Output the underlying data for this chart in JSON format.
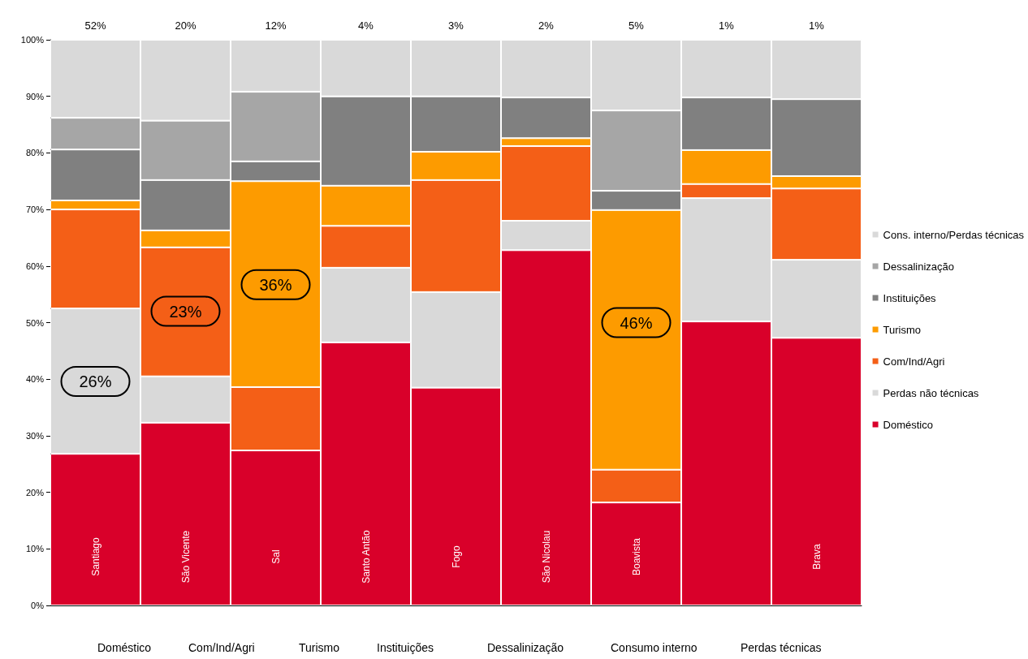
{
  "chart_data": {
    "type": "bar",
    "stacked": true,
    "categories": [
      "Santiago",
      "São Vicente",
      "Sal",
      "Santo Antão",
      "Fogo",
      "São Nicolau",
      "Boavista",
      null,
      "Brava"
    ],
    "series": [
      {
        "name": "Doméstico",
        "color": "#d9002a",
        "values": [
          26.8,
          32.3,
          27.4,
          46.5,
          38.5,
          62.8,
          18.2,
          50.2,
          47.3
        ]
      },
      {
        "name": "Perdas não técnicas",
        "color": "#d9d9d9",
        "values": [
          25.7,
          8.2,
          0,
          13.2,
          16.9,
          5.2,
          0,
          21.8,
          13.8
        ]
      },
      {
        "name": "Com/Ind/Agri",
        "color": "#f45f17",
        "values": [
          17.5,
          22.8,
          11.2,
          7.4,
          19.8,
          13.2,
          5.8,
          2.5,
          12.6
        ]
      },
      {
        "name": "Turismo",
        "color": "#fd9b00",
        "values": [
          1.6,
          3.0,
          36.4,
          7.1,
          5.0,
          1.4,
          45.9,
          6.0,
          2.2
        ]
      },
      {
        "name": "Instituições",
        "color": "#808080",
        "values": [
          9.0,
          8.9,
          3.5,
          15.8,
          9.8,
          7.2,
          3.4,
          9.3,
          13.6
        ]
      },
      {
        "name": "Dessalinização",
        "color": "#a6a6a6",
        "values": [
          5.6,
          10.5,
          12.3,
          0,
          0,
          0,
          14.2,
          0,
          0
        ]
      },
      {
        "name": "Cons. interno/Perdas técnicas",
        "color": "#d9d9d9",
        "values": [
          13.8,
          14.3,
          9.2,
          10.0,
          10.0,
          10.2,
          12.5,
          10.2,
          10.5
        ]
      }
    ],
    "ylim": [
      0,
      100
    ],
    "yticks": [
      {
        "value": 0,
        "label": "0%"
      },
      {
        "value": 10,
        "label": "10%"
      },
      {
        "value": 20,
        "label": "20%"
      },
      {
        "value": 30,
        "label": "30%"
      },
      {
        "value": 40,
        "label": "40%"
      },
      {
        "value": 50,
        "label": "50%"
      },
      {
        "value": 60,
        "label": "60%"
      },
      {
        "value": 70,
        "label": "70%"
      },
      {
        "value": 80,
        "label": "80%"
      },
      {
        "value": 90,
        "label": "90%"
      },
      {
        "value": 100,
        "label": "100%"
      }
    ],
    "grid": false,
    "legend": "right",
    "annotations": [
      "52%",
      "20%",
      "12%",
      "4%",
      "3%",
      "2%",
      "5%",
      "1%",
      "1%",
      "26%",
      "23%",
      "36%",
      "46%",
      "Doméstico",
      "Com/Ind/Agri",
      "Turismo",
      "Instituições",
      "Dessalinização",
      "Consumo interno",
      "Perdas técnicas"
    ]
  }
}
